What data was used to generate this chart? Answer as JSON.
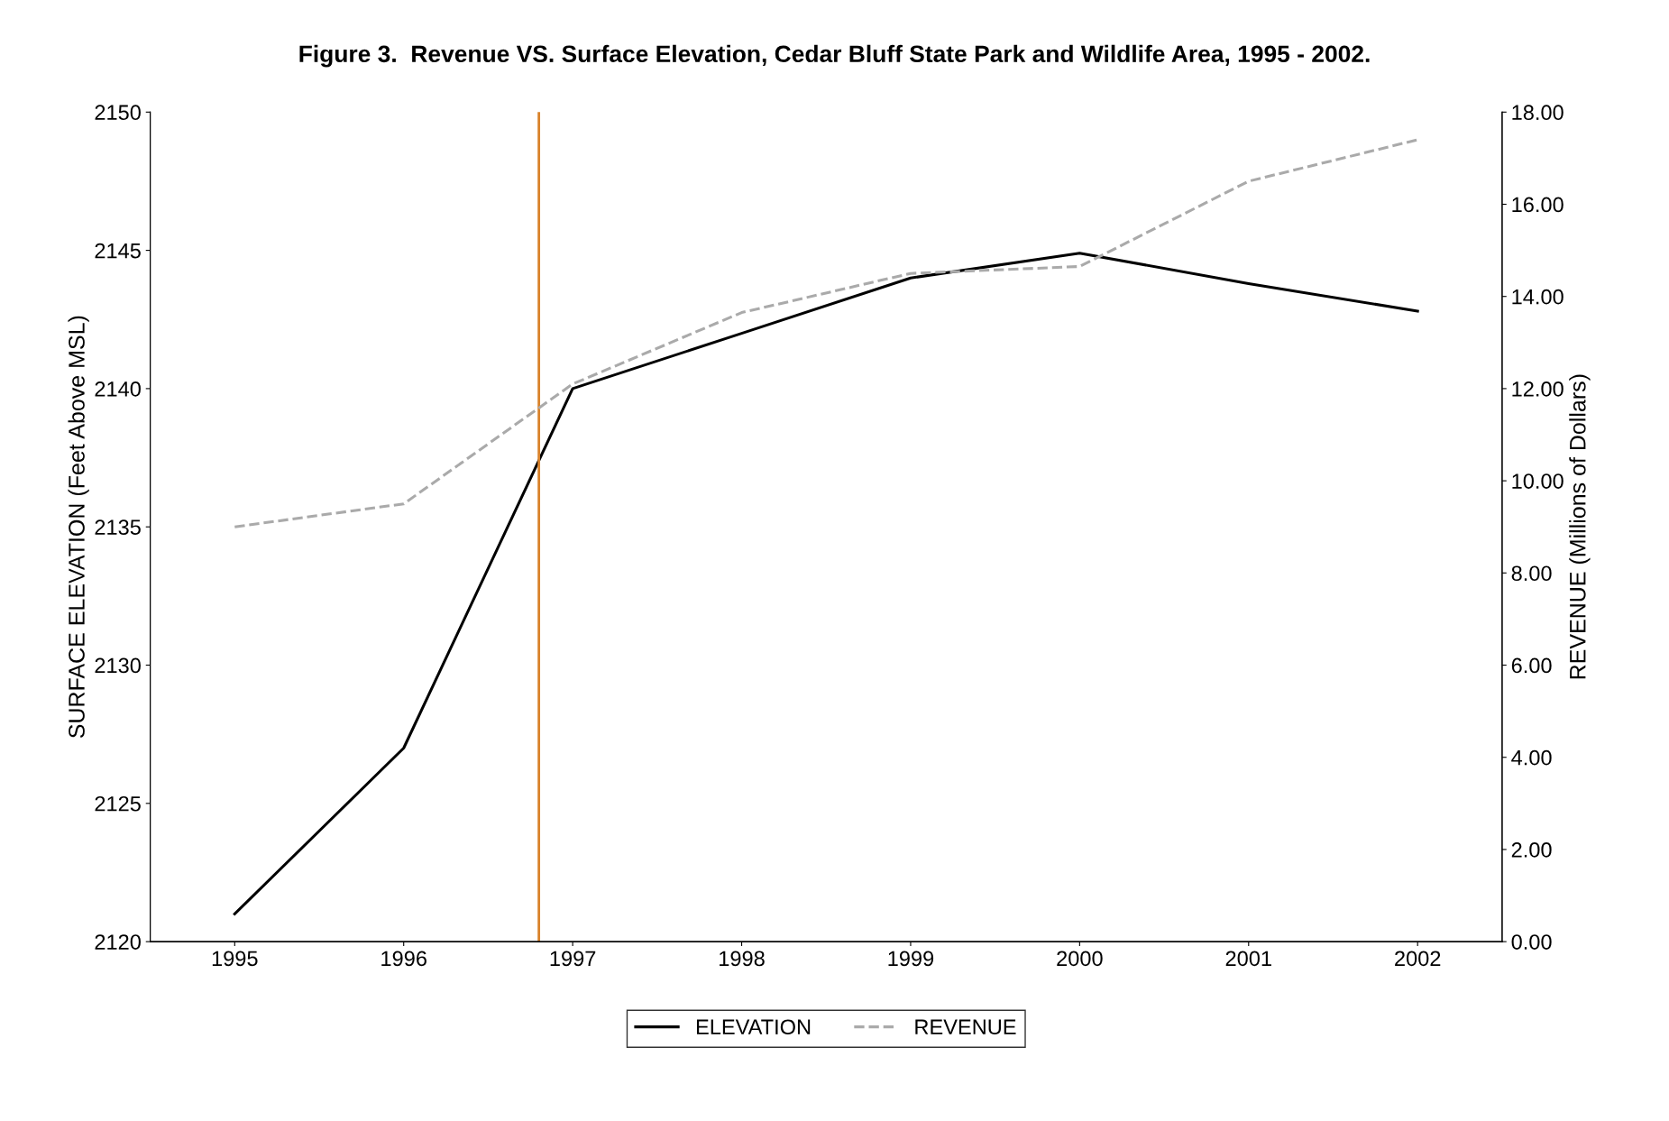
{
  "chart_data": {
    "type": "line",
    "title": "Figure 3.  Revenue VS. Surface Elevation, Cedar Bluff State Park and Wildlife Area, 1995 - 2002.",
    "ylabel": "SURFACE ELEVATION (Feet Above MSL)",
    "y2label": "REVENUE (Millions of Dollars)",
    "x": [
      1995,
      1996,
      1997,
      1998,
      1999,
      2000,
      2001,
      2002
    ],
    "xlim": [
      1994.5,
      2002.5
    ],
    "xticks": [
      1995,
      1996,
      1997,
      1998,
      1999,
      2000,
      2001,
      2002
    ],
    "ylim": [
      2120,
      2150
    ],
    "yticks": [
      2120,
      2125,
      2130,
      2135,
      2140,
      2145,
      2150
    ],
    "y2lim": [
      0,
      18
    ],
    "y2ticks": [
      {
        "value": 0,
        "label": "0.00"
      },
      {
        "value": 2,
        "label": "2.00"
      },
      {
        "value": 4,
        "label": "4.00"
      },
      {
        "value": 6,
        "label": "6.00"
      },
      {
        "value": 8,
        "label": "8.00"
      },
      {
        "value": 10,
        "label": "10.00"
      },
      {
        "value": 12,
        "label": "12.00"
      },
      {
        "value": 14,
        "label": "14.00"
      },
      {
        "value": 16,
        "label": "16.00"
      },
      {
        "value": 18,
        "label": "18.00"
      }
    ],
    "series": [
      {
        "name": "ELEVATION",
        "color": "#000000",
        "line_style": "solid",
        "values": [
          2121,
          2127,
          2140,
          2142,
          2144,
          2144.9,
          2143.8,
          2142.8
        ]
      },
      {
        "name": "REVENUE",
        "color": "#aaaaaa",
        "line_style": "dashed",
        "axis": "y2",
        "values": [
          9.0,
          9.5,
          12.1,
          13.65,
          14.5,
          14.65,
          16.5,
          17.4
        ]
      }
    ],
    "ref_lines": [
      {
        "axis": "x",
        "value": 1996.8,
        "color": "#d9822b",
        "line_style": "solid"
      }
    ],
    "grid": false,
    "legend": "bottom",
    "marker": "none"
  }
}
